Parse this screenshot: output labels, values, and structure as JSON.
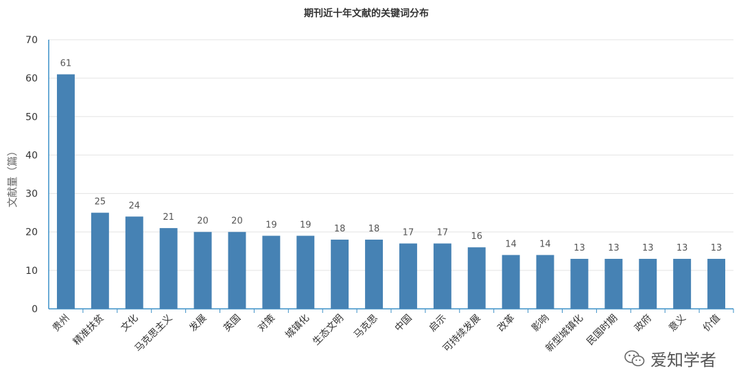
{
  "chart_data": {
    "type": "bar",
    "title": "期刊近十年文献的关键词分布",
    "xlabel": "",
    "ylabel": "文献量（篇）",
    "ylim": [
      0,
      70
    ],
    "yticks": [
      0,
      10,
      20,
      30,
      40,
      50,
      60,
      70
    ],
    "categories": [
      "贵州",
      "精准扶贫",
      "文化",
      "马克思主义",
      "发展",
      "英国",
      "对策",
      "城镇化",
      "生态文明",
      "马克思",
      "中国",
      "启示",
      "可持续发展",
      "改革",
      "影响",
      "新型城镇化",
      "民国时期",
      "政府",
      "意义",
      "价值"
    ],
    "values": [
      61,
      25,
      24,
      21,
      20,
      20,
      19,
      19,
      18,
      18,
      17,
      17,
      16,
      14,
      14,
      13,
      13,
      13,
      13,
      13
    ],
    "bar_color": "#4682b4",
    "grid": true,
    "legend": "none"
  },
  "watermark": {
    "text": "爱知学者",
    "icon": "wechat-icon"
  }
}
